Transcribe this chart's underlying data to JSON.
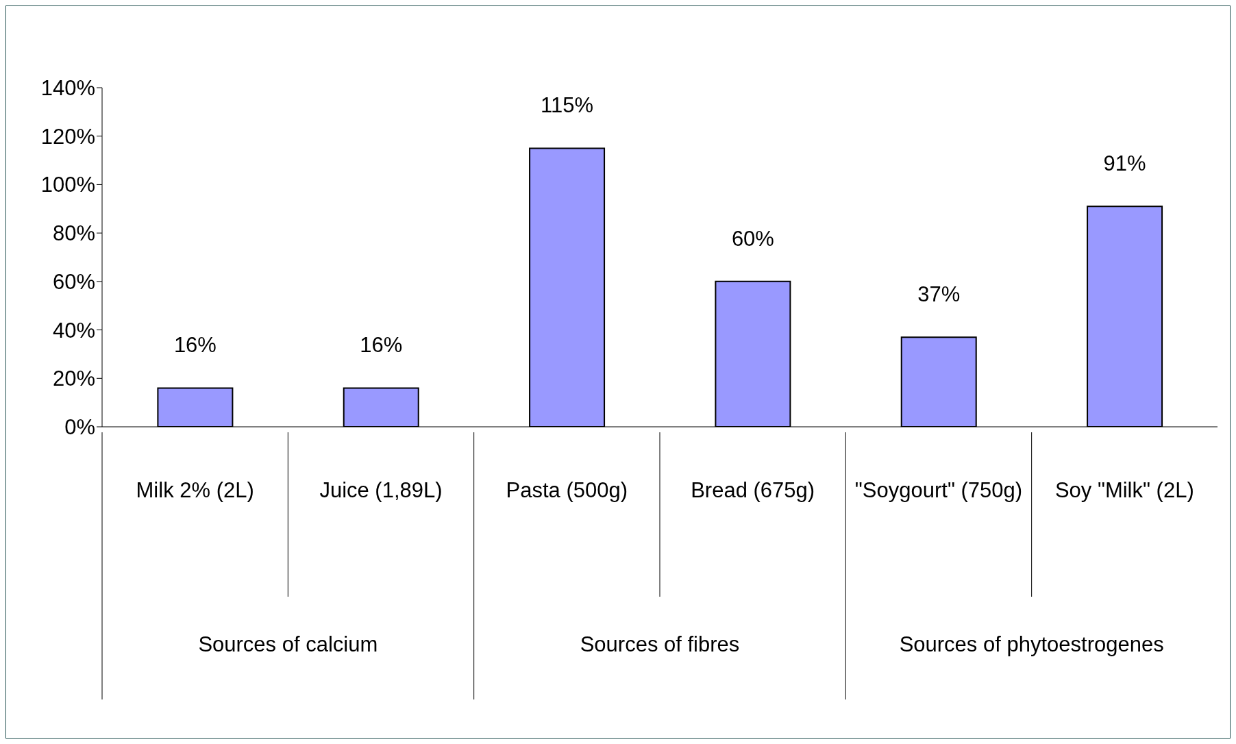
{
  "chart_data": {
    "type": "bar",
    "categories": [
      "Milk 2% (2L)",
      "Juice (1,89L)",
      "Pasta (500g)",
      "Bread (675g)",
      "\"Soygourt\" (750g)",
      "Soy \"Milk\" (2L)"
    ],
    "values": [
      16,
      16,
      115,
      60,
      37,
      91
    ],
    "color": "#9999ff",
    "ylim": [
      0,
      140
    ],
    "yticks": [
      {
        "value": 0,
        "label": "0%"
      },
      {
        "value": 20,
        "label": "20%"
      },
      {
        "value": 40,
        "label": "40%"
      },
      {
        "value": 60,
        "label": "60%"
      },
      {
        "value": 80,
        "label": "80%"
      },
      {
        "value": 100,
        "label": "100%"
      },
      {
        "value": 120,
        "label": "120%"
      },
      {
        "value": 140,
        "label": "140%"
      }
    ],
    "value_labels": [
      "16%",
      "16%",
      "115%",
      "60%",
      "37%",
      "91%"
    ],
    "annotations": [
      "Sources of calcium",
      "Sources of fibres",
      "Sources of phytoestrogenes"
    ]
  }
}
